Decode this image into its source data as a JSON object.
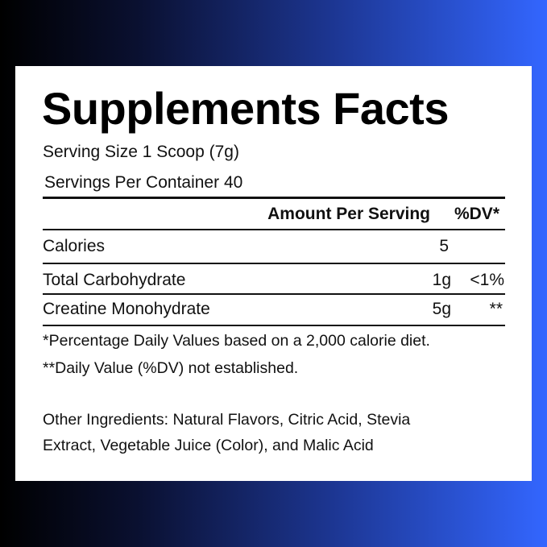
{
  "title": "Supplements Facts",
  "serving_size": "Serving Size 1 Scoop (7g)",
  "servings_per_container": "Servings Per Container 40",
  "header": {
    "amount": "Amount Per Serving",
    "dv": "%DV*"
  },
  "rows": [
    {
      "name": "Calories",
      "amount": "5",
      "dv": ""
    },
    {
      "name": "Total Carbohydrate",
      "amount": "1g",
      "dv": "<1%"
    },
    {
      "name": "Creatine Monohydrate",
      "amount": "5g",
      "dv": "**"
    }
  ],
  "footnotes": [
    "*Percentage Daily Values based on a 2,000 calorie diet.",
    "**Daily Value (%DV) not established."
  ],
  "other_ingredients": [
    "Other Ingredients: Natural Flavors, Citric Acid, Stevia",
    "Extract, Vegetable Juice (Color), and Malic Acid"
  ]
}
